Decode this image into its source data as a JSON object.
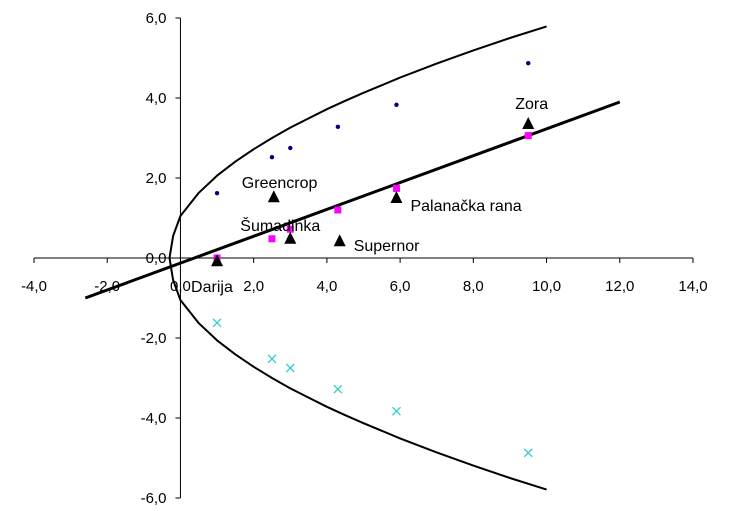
{
  "chart_data": {
    "type": "scatter",
    "xlim": [
      -4,
      14
    ],
    "ylim": [
      -6,
      6
    ],
    "x_ticks": [
      "-4,0",
      "-2,0",
      "0,0",
      "2,0",
      "4,0",
      "6,0",
      "8,0",
      "10,0",
      "12,0",
      "14,0"
    ],
    "y_ticks": [
      "6,0",
      "4,0",
      "2,0",
      "0,0",
      "-2,0",
      "-4,0",
      "-6,0"
    ],
    "grid": false,
    "legend": "none",
    "colors": {
      "axis": "#000000",
      "upper": "#000080",
      "middle": "#ff00ff",
      "lower": "#33cccc",
      "cultivar": "#000000"
    },
    "series": [
      {
        "role": "upper",
        "marker": "dot",
        "x": [
          1.0,
          2.5,
          3.0,
          4.3,
          5.9,
          9.5
        ],
        "y": [
          1.62,
          2.52,
          2.75,
          3.28,
          3.83,
          4.87
        ]
      },
      {
        "role": "middle",
        "marker": "square",
        "x": [
          1.0,
          2.5,
          3.0,
          4.3,
          5.9,
          9.5
        ],
        "y": [
          0.0,
          0.48,
          0.72,
          1.2,
          1.74,
          3.06
        ]
      },
      {
        "role": "lower",
        "marker": "x",
        "x": [
          1.0,
          2.5,
          3.0,
          4.3,
          5.9,
          9.5
        ],
        "y": [
          -1.62,
          -2.52,
          -2.75,
          -3.28,
          -3.83,
          -4.87
        ]
      },
      {
        "role": "cultivars",
        "marker": "triangle",
        "points": [
          {
            "label": "Darija",
            "x": 1.0,
            "y": -0.08
          },
          {
            "label": "Greencrop",
            "x": 2.55,
            "y": 1.52
          },
          {
            "label": "Šumadinka",
            "x": 3.0,
            "y": 0.48
          },
          {
            "label": "Supernor",
            "x": 4.35,
            "y": 0.42
          },
          {
            "label": "Palanačka rana",
            "x": 5.9,
            "y": 1.5
          },
          {
            "label": "Zora",
            "x": 9.5,
            "y": 3.35
          }
        ]
      }
    ],
    "curves": [
      {
        "role": "parabola-upper",
        "x": [
          -0.3,
          -0.2,
          0.0,
          0.5,
          1.0,
          1.5,
          2.0,
          2.5,
          3.0,
          3.5,
          4.0,
          4.5,
          5.0,
          6.0,
          7.0,
          8.0,
          9.0,
          10.0
        ],
        "y": [
          0.0,
          0.55,
          1.05,
          1.63,
          2.06,
          2.41,
          2.72,
          3.0,
          3.26,
          3.49,
          3.72,
          3.93,
          4.13,
          4.51,
          4.86,
          5.19,
          5.5,
          5.79
        ]
      },
      {
        "role": "parabola-lower",
        "x": [
          -0.3,
          -0.2,
          0.0,
          0.5,
          1.0,
          1.5,
          2.0,
          2.5,
          3.0,
          3.5,
          4.0,
          4.5,
          5.0,
          6.0,
          7.0,
          8.0,
          9.0,
          10.0
        ],
        "y": [
          0.0,
          -0.55,
          -1.05,
          -1.63,
          -2.06,
          -2.41,
          -2.72,
          -3.0,
          -3.26,
          -3.49,
          -3.72,
          -3.93,
          -4.13,
          -4.51,
          -4.86,
          -5.19,
          -5.5,
          -5.79
        ]
      },
      {
        "role": "regression-line",
        "x": [
          -2.6,
          12.0
        ],
        "y": [
          -1.0,
          3.9
        ]
      }
    ]
  }
}
